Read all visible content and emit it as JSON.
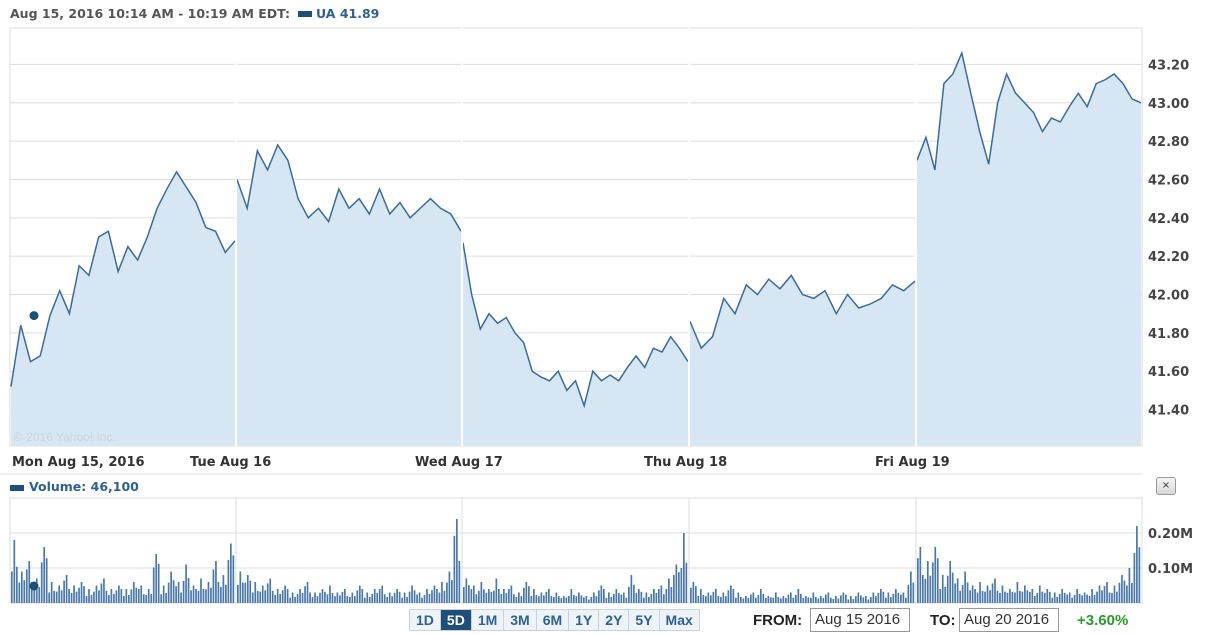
{
  "header": {
    "range": "Aug 15, 2016 10:14 AM - 10:19 AM EDT:",
    "symbol": "UA",
    "value": "41.89"
  },
  "copyright": "© 2016 Yahoo! Inc.",
  "volume": {
    "label": "Volume: 46,100",
    "close_label": "×"
  },
  "controls": {
    "ranges": [
      "1D",
      "5D",
      "1M",
      "3M",
      "6M",
      "1Y",
      "2Y",
      "5Y",
      "Max"
    ],
    "selected": "5D",
    "from_label": "FROM:",
    "from_value": "Aug 15 2016",
    "to_label": "TO:",
    "to_value": "Aug 20 2016",
    "change": "+3.60%",
    "change_color": "#2a9a2a"
  },
  "chart_data": [
    {
      "type": "area",
      "title": "UA",
      "x_ticks": [
        "Mon Aug 15, 2016",
        "Tue Aug 16",
        "Wed Aug 17",
        "Thu Aug 18",
        "Fri Aug 19"
      ],
      "y_ticks": [
        "41.40",
        "41.60",
        "41.80",
        "42.00",
        "42.20",
        "42.40",
        "42.60",
        "42.80",
        "43.00",
        "43.20"
      ],
      "ylim": [
        41.21,
        43.39
      ],
      "grid": true,
      "color": "#3a6b9a",
      "fill": "#d6e6f2",
      "marker": {
        "day": 0,
        "value": 41.89
      },
      "series": [
        [
          41.52,
          41.84,
          41.65,
          41.68,
          41.89,
          42.02,
          41.9,
          42.15,
          42.1,
          42.3,
          42.33,
          42.12,
          42.25,
          42.18,
          42.3,
          42.45,
          42.55,
          42.64,
          42.56,
          42.48,
          42.35,
          42.33,
          42.22,
          42.28
        ],
        [
          42.6,
          42.45,
          42.75,
          42.65,
          42.78,
          42.7,
          42.5,
          42.4,
          42.45,
          42.38,
          42.55,
          42.45,
          42.5,
          42.42,
          42.55,
          42.42,
          42.48,
          42.4,
          42.45,
          42.5,
          42.45,
          42.42,
          42.33
        ],
        [
          42.27,
          42.0,
          41.82,
          41.9,
          41.85,
          41.88,
          41.8,
          41.75,
          41.6,
          41.57,
          41.55,
          41.6,
          41.5,
          41.55,
          41.42,
          41.6,
          41.55,
          41.58,
          41.55,
          41.62,
          41.68,
          41.62,
          41.72,
          41.7,
          41.78,
          41.72,
          41.65
        ],
        [
          41.86,
          41.72,
          41.78,
          41.98,
          41.9,
          42.05,
          42.0,
          42.08,
          42.03,
          42.1,
          42.0,
          41.98,
          42.02,
          41.9,
          42.0,
          41.93,
          41.95,
          41.98,
          42.05,
          42.02,
          42.07
        ],
        [
          42.7,
          42.82,
          42.65,
          43.1,
          43.15,
          43.26,
          43.05,
          42.85,
          42.68,
          43.0,
          43.15,
          43.05,
          43.0,
          42.95,
          42.85,
          42.92,
          42.9,
          42.98,
          43.05,
          42.98,
          43.1,
          43.12,
          43.15,
          43.1,
          43.02,
          43.0
        ]
      ]
    },
    {
      "type": "bar",
      "title": "Volume",
      "y_ticks": [
        "0.10M",
        "0.20M"
      ],
      "ylim": [
        0,
        0.3
      ],
      "color": "#4a78a8",
      "series": [
        [
          0.18,
          0.09,
          0.12,
          0.07,
          0.16,
          0.06,
          0.05,
          0.08,
          0.05,
          0.06,
          0.04,
          0.05,
          0.07,
          0.04,
          0.05,
          0.04,
          0.06,
          0.05,
          0.04,
          0.14,
          0.05,
          0.09,
          0.06,
          0.11,
          0.05,
          0.07,
          0.06,
          0.12,
          0.08,
          0.17
        ],
        [
          0.09,
          0.08,
          0.06,
          0.05,
          0.07,
          0.04,
          0.05,
          0.03,
          0.04,
          0.06,
          0.03,
          0.04,
          0.05,
          0.03,
          0.04,
          0.03,
          0.05,
          0.03,
          0.04,
          0.05,
          0.03,
          0.04,
          0.03,
          0.05,
          0.03,
          0.04,
          0.05,
          0.06,
          0.09,
          0.24
        ],
        [
          0.07,
          0.05,
          0.06,
          0.04,
          0.07,
          0.04,
          0.05,
          0.03,
          0.06,
          0.04,
          0.03,
          0.04,
          0.03,
          0.02,
          0.04,
          0.03,
          0.02,
          0.03,
          0.05,
          0.03,
          0.04,
          0.03,
          0.08,
          0.04,
          0.03,
          0.04,
          0.05,
          0.07,
          0.11,
          0.2
        ],
        [
          0.06,
          0.04,
          0.03,
          0.04,
          0.03,
          0.05,
          0.03,
          0.02,
          0.03,
          0.04,
          0.02,
          0.03,
          0.02,
          0.03,
          0.04,
          0.02,
          0.03,
          0.02,
          0.03,
          0.02,
          0.03,
          0.02,
          0.03,
          0.02,
          0.03,
          0.04,
          0.03,
          0.04,
          0.03,
          0.09
        ],
        [
          0.16,
          0.12,
          0.16,
          0.08,
          0.12,
          0.07,
          0.09,
          0.05,
          0.06,
          0.05,
          0.07,
          0.05,
          0.04,
          0.06,
          0.05,
          0.04,
          0.05,
          0.04,
          0.03,
          0.04,
          0.03,
          0.04,
          0.03,
          0.04,
          0.05,
          0.06,
          0.05,
          0.08,
          0.1,
          0.22
        ]
      ]
    }
  ]
}
